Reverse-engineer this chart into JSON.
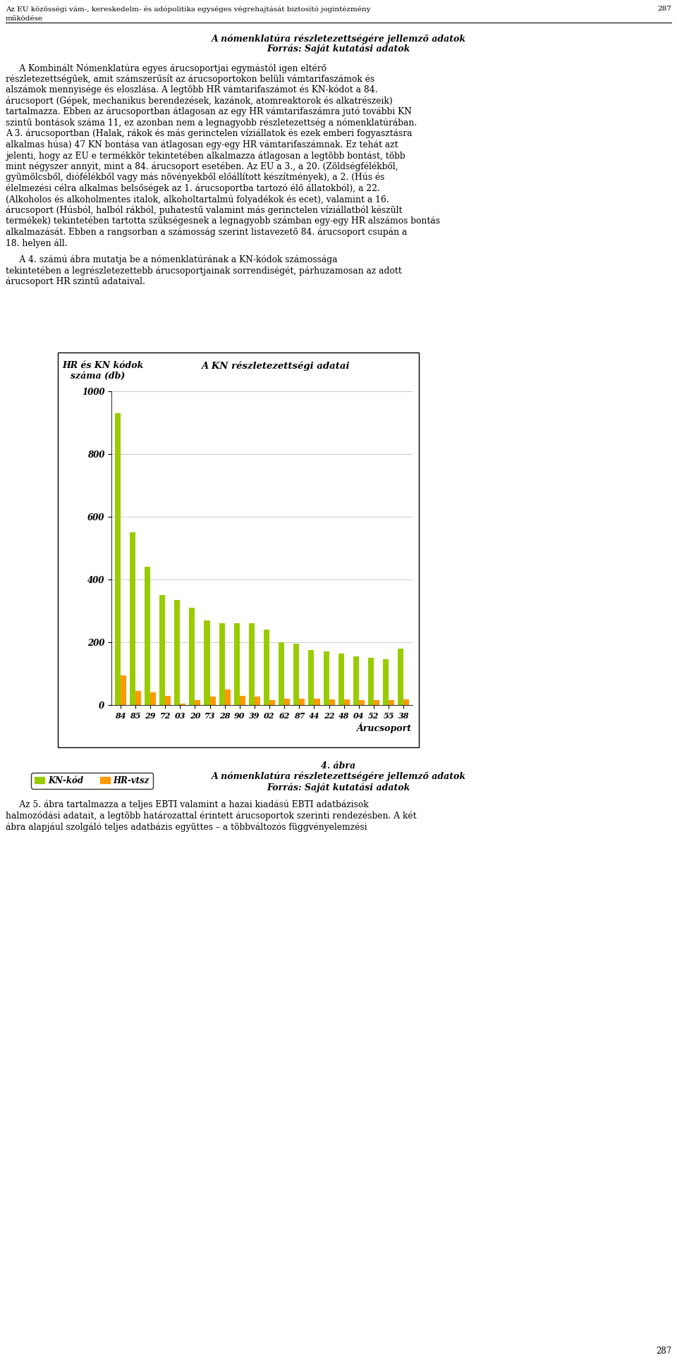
{
  "title_chart": "A KN részletezettségi adatai",
  "ylabel_line1": "HR és KN kódok",
  "ylabel_line2": "száma (db)",
  "xlabel": "Árucsoport",
  "categories": [
    "84",
    "85",
    "29",
    "72",
    "03",
    "20",
    "73",
    "28",
    "90",
    "39",
    "02",
    "62",
    "87",
    "44",
    "22",
    "48",
    "04",
    "52",
    "55",
    "38"
  ],
  "kn_values": [
    930,
    550,
    440,
    350,
    335,
    310,
    270,
    260,
    260,
    260,
    240,
    200,
    195,
    175,
    170,
    165,
    155,
    150,
    145,
    180
  ],
  "hr_values": [
    95,
    45,
    40,
    30,
    5,
    15,
    28,
    50,
    30,
    28,
    15,
    20,
    20,
    20,
    18,
    18,
    16,
    16,
    15,
    18
  ],
  "kn_color": "#99cc00",
  "hr_color": "#ff9900",
  "legend_kn": "KN-kód",
  "legend_hr": "HR-vtsz",
  "ylim": [
    0,
    1000
  ],
  "yticks": [
    0,
    200,
    400,
    600,
    800,
    1000
  ],
  "background_color": "#ffffff",
  "chart_bg": "#ffffff",
  "grid_color": "#cccccc",
  "page_width": 9.6,
  "page_height": 19.39
}
